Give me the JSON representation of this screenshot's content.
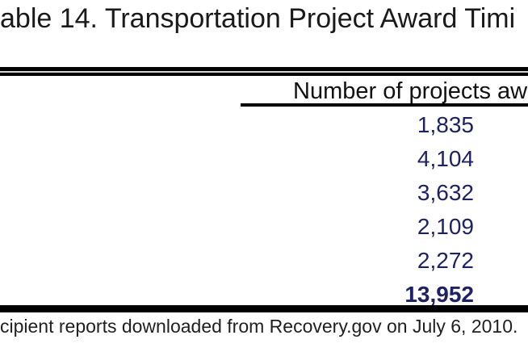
{
  "title": "able 14. Transportation Project Award Timi",
  "table": {
    "column_header": "Number of projects aw",
    "values": [
      "1,835",
      "4,104",
      "3,632",
      "2,109",
      "2,272",
      "13,952"
    ],
    "total_value": "13,952"
  },
  "footer_note": "cipient reports downloaded from Recovery.gov on July 6, 2010.",
  "colors": {
    "value_text": "#1f2166",
    "rule": "#000000",
    "body_text": "#1a1a1a",
    "background": "#ffffff"
  },
  "chart_data": {
    "type": "table",
    "title": "able 14. Transportation Project Award Timi",
    "columns": [
      "Number of projects aw"
    ],
    "rows": [
      [
        "1,835"
      ],
      [
        "4,104"
      ],
      [
        "3,632"
      ],
      [
        "2,109"
      ],
      [
        "2,272"
      ],
      [
        "13,952"
      ]
    ],
    "total_row_index": 5,
    "source_note": "cipient reports downloaded from Recovery.gov on July 6, 2010."
  }
}
